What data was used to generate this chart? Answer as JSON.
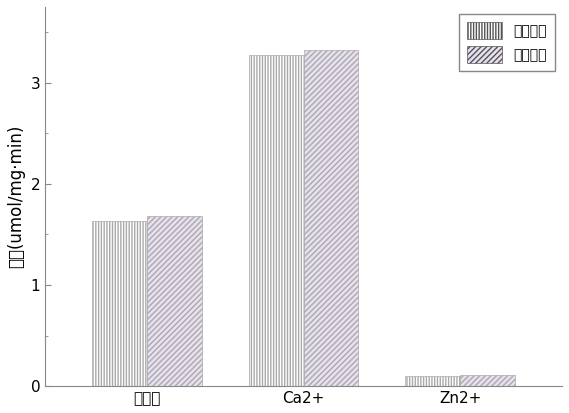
{
  "categories": [
    "控制组",
    "Ca2+",
    "Zn2+"
  ],
  "series": [
    {
      "name": "荧光强度",
      "values": [
        1.63,
        3.27,
        0.1
      ],
      "hatch": "||||||",
      "facecolor": "#ffffff",
      "edgecolor": "#aaaaaa",
      "linewidth": 0.5
    },
    {
      "name": "荧光寿命",
      "values": [
        1.68,
        3.32,
        0.11
      ],
      "hatch": "//////",
      "facecolor": "#e8e0f0",
      "edgecolor": "#aaaaaa",
      "linewidth": 0.5
    }
  ],
  "ylabel": "活性(umol/mg·min)",
  "ylim": [
    0,
    3.75
  ],
  "yticks": [
    0,
    1,
    2,
    3
  ],
  "bar_width": 0.35,
  "background_color": "#ffffff",
  "legend_loc": "upper right",
  "tick_fontsize": 11,
  "label_fontsize": 12,
  "spine_color": "#888888"
}
